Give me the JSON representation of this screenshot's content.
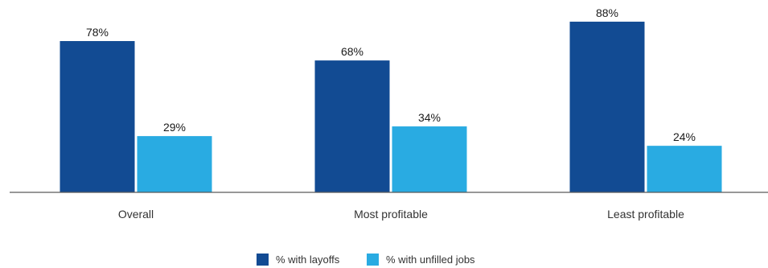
{
  "chart_data": {
    "type": "bar",
    "categories": [
      "Overall",
      "Most profitable",
      "Least profitable"
    ],
    "series": [
      {
        "name": "% with layoffs",
        "values": [
          78,
          68,
          88
        ],
        "color": "#124b93"
      },
      {
        "name": "% with unfilled jobs",
        "values": [
          29,
          34,
          24
        ],
        "color": "#29abe2"
      }
    ],
    "value_suffix": "%",
    "ylim": [
      0,
      100
    ],
    "grid": false,
    "legend_position": "bottom-center"
  }
}
